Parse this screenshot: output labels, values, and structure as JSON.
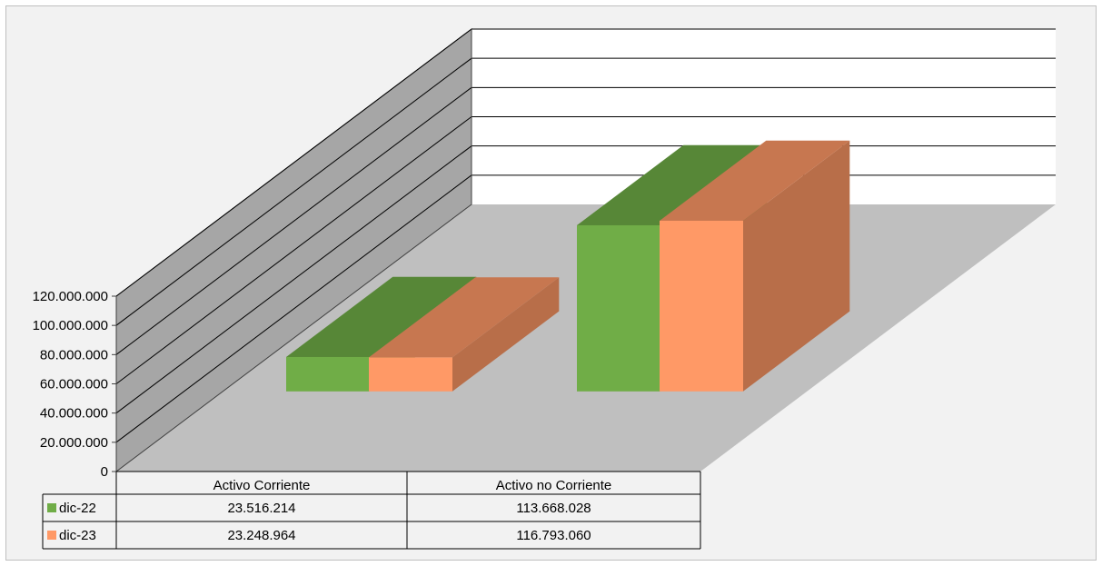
{
  "chart_data": {
    "type": "bar",
    "style": "3d-column-with-data-table",
    "categories": [
      "Activo Corriente",
      "Activo no Corriente"
    ],
    "series": [
      {
        "name": "dic-22",
        "values": [
          23516214,
          113668028
        ],
        "color": "#70ad47"
      },
      {
        "name": "dic-23",
        "values": [
          23248964,
          116793060
        ],
        "color": "#ff9966"
      }
    ],
    "value_labels": [
      [
        "23.516.214",
        "113.668.028"
      ],
      [
        "23.248.964",
        "116.793.060"
      ]
    ],
    "yticks": [
      "0",
      "20.000.000",
      "40.000.000",
      "60.000.000",
      "80.000.000",
      "100.000.000",
      "120.000.000"
    ],
    "ylim": [
      0,
      120000000
    ],
    "grid": true,
    "legend": "data-table",
    "colors": {
      "background": "#f2f2f2",
      "back_wall": "#ffffff",
      "side_wall": "#a6a6a6",
      "floor": "#bfbfbf"
    }
  }
}
